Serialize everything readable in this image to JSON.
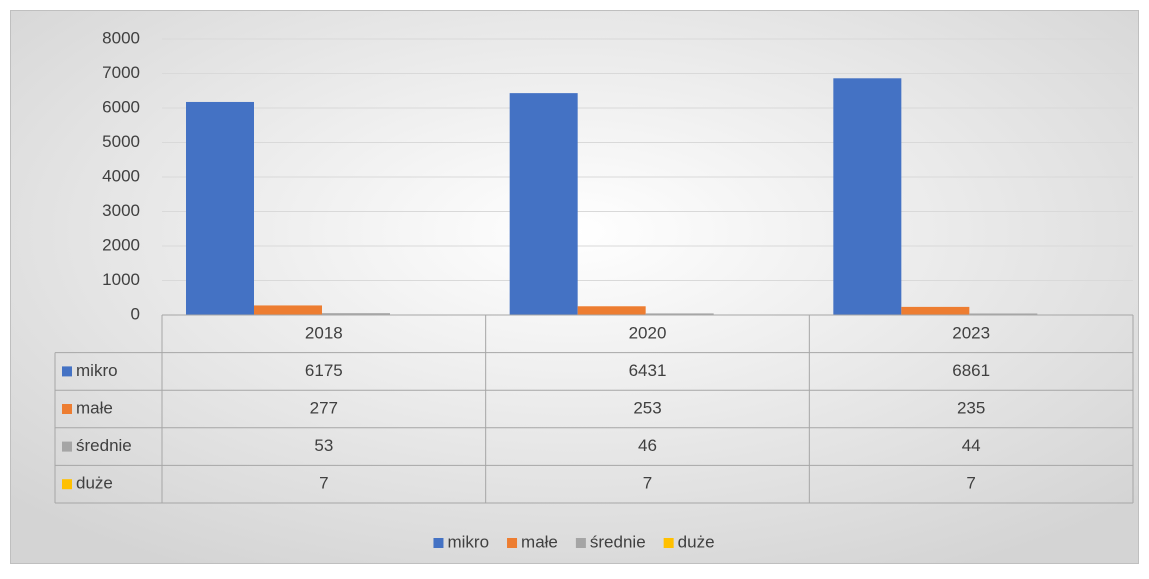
{
  "chart_data": {
    "type": "bar",
    "categories": [
      "2018",
      "2020",
      "2023"
    ],
    "series": [
      {
        "name": "mikro",
        "color": "#4472c4",
        "values": [
          6175,
          6431,
          6861
        ]
      },
      {
        "name": "małe",
        "color": "#ed7d31",
        "values": [
          277,
          253,
          235
        ]
      },
      {
        "name": "średnie",
        "color": "#a5a5a5",
        "values": [
          53,
          46,
          44
        ]
      },
      {
        "name": "duże",
        "color": "#ffc000",
        "values": [
          7,
          7,
          7
        ]
      }
    ],
    "ylim": [
      0,
      8000
    ],
    "yticks": [
      0,
      1000,
      2000,
      3000,
      4000,
      5000,
      6000,
      7000,
      8000
    ],
    "grid": true,
    "legend": "bottom",
    "data_table": true
  }
}
